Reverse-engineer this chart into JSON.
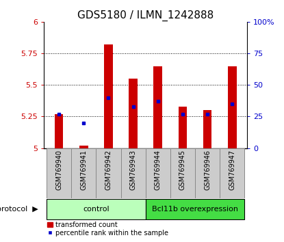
{
  "title": "GDS5180 / ILMN_1242888",
  "samples": [
    "GSM769940",
    "GSM769941",
    "GSM769942",
    "GSM769943",
    "GSM769944",
    "GSM769945",
    "GSM769946",
    "GSM769947"
  ],
  "transformed_count": [
    5.27,
    5.02,
    5.82,
    5.55,
    5.65,
    5.33,
    5.3,
    5.65
  ],
  "percentile_rank": [
    27,
    20,
    40,
    33,
    37,
    27,
    27,
    35
  ],
  "ylim_left": [
    5.0,
    6.0
  ],
  "ylim_right": [
    0,
    100
  ],
  "yticks_left": [
    5.0,
    5.25,
    5.5,
    5.75,
    6.0
  ],
  "yticks_right": [
    0,
    25,
    50,
    75,
    100
  ],
  "ytick_labels_left": [
    "5",
    "5.25",
    "5.5",
    "5.75",
    "6"
  ],
  "ytick_labels_right": [
    "0",
    "25",
    "50",
    "75",
    "100%"
  ],
  "bar_color": "#cc0000",
  "marker_color": "#0000cc",
  "bar_baseline": 5.0,
  "groups": [
    {
      "label": "control",
      "start": 0,
      "end": 4,
      "color": "#bbffbb"
    },
    {
      "label": "Bcl11b overexpression",
      "start": 4,
      "end": 8,
      "color": "#44dd44"
    }
  ],
  "protocol_label": "protocol",
  "legend_bar_label": "transformed count",
  "legend_marker_label": "percentile rank within the sample",
  "title_fontsize": 11,
  "tick_fontsize": 8,
  "bg_color": "#ffffff",
  "sample_label_fontsize": 7,
  "sample_bg_color": "#cccccc",
  "sample_border_color": "#888888"
}
